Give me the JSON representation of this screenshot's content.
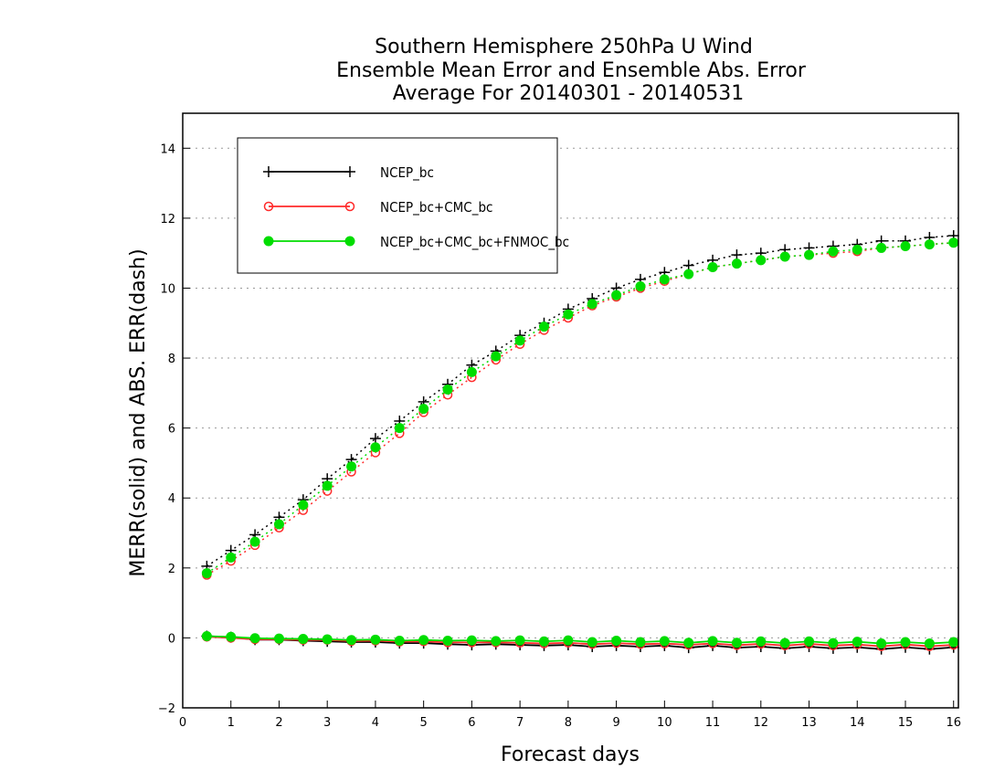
{
  "chart_data": {
    "type": "line",
    "title": [
      "Southern Hemisphere 250hPa U Wind",
      "Ensemble Mean Error and Ensemble Abs. Error",
      "Average For 20140301 - 20140531"
    ],
    "xlabel": "Forecast days",
    "ylabel": "MERR(solid) and ABS. ERR(dash)",
    "xlim": [
      0,
      16.1
    ],
    "ylim": [
      -2,
      15
    ],
    "xticks": [
      0,
      1,
      2,
      3,
      4,
      5,
      6,
      7,
      8,
      9,
      10,
      11,
      12,
      13,
      14,
      15,
      16
    ],
    "yticks": [
      -2,
      0,
      2,
      4,
      6,
      8,
      10,
      12,
      14
    ],
    "grid": "dotted horizontal at y ticks",
    "legend_position": "top-left",
    "x": [
      0.5,
      1,
      1.5,
      2,
      2.5,
      3,
      3.5,
      4,
      4.5,
      5,
      5.5,
      6,
      6.5,
      7,
      7.5,
      8,
      8.5,
      9,
      9.5,
      10,
      10.5,
      11,
      11.5,
      12,
      12.5,
      13,
      13.5,
      14,
      14.5,
      15,
      15.5,
      16
    ],
    "series": [
      {
        "name": "NCEP_bc",
        "color": "#000000",
        "marker": "plus",
        "abs_err_dash": [
          2.05,
          2.5,
          2.95,
          3.45,
          3.95,
          4.55,
          5.1,
          5.7,
          6.2,
          6.75,
          7.25,
          7.8,
          8.2,
          8.65,
          9.0,
          9.4,
          9.7,
          10.0,
          10.25,
          10.45,
          10.65,
          10.8,
          10.95,
          11.0,
          11.1,
          11.15,
          11.2,
          11.25,
          11.35,
          11.35,
          11.45,
          11.5
        ],
        "mean_err_solid": [
          0.05,
          0.02,
          -0.05,
          -0.05,
          -0.08,
          -0.1,
          -0.12,
          -0.12,
          -0.15,
          -0.15,
          -0.18,
          -0.2,
          -0.18,
          -0.2,
          -0.22,
          -0.2,
          -0.25,
          -0.22,
          -0.25,
          -0.22,
          -0.28,
          -0.22,
          -0.28,
          -0.25,
          -0.3,
          -0.25,
          -0.3,
          -0.27,
          -0.32,
          -0.27,
          -0.32,
          -0.27
        ]
      },
      {
        "name": "NCEP_bc+CMC_bc",
        "color": "#ff2a2a",
        "marker": "open-circle",
        "abs_err_dash": [
          1.8,
          2.2,
          2.65,
          3.15,
          3.65,
          4.2,
          4.75,
          5.3,
          5.85,
          6.45,
          6.95,
          7.45,
          7.95,
          8.4,
          8.8,
          9.15,
          9.5,
          9.75,
          10.0,
          10.2,
          10.4,
          10.6,
          10.7,
          10.8,
          10.9,
          10.95,
          11.0,
          11.05,
          11.15,
          11.2,
          11.25,
          11.3
        ],
        "mean_err_solid": [
          0.03,
          0.0,
          -0.04,
          -0.04,
          -0.06,
          -0.06,
          -0.09,
          -0.08,
          -0.11,
          -0.1,
          -0.13,
          -0.13,
          -0.13,
          -0.14,
          -0.16,
          -0.14,
          -0.18,
          -0.15,
          -0.18,
          -0.16,
          -0.2,
          -0.16,
          -0.21,
          -0.17,
          -0.22,
          -0.17,
          -0.22,
          -0.19,
          -0.24,
          -0.19,
          -0.24,
          -0.2
        ]
      },
      {
        "name": "NCEP_bc+CMC_bc+FNMOC_bc",
        "color": "#00dd00",
        "marker": "filled-circle",
        "abs_err_dash": [
          1.85,
          2.3,
          2.75,
          3.25,
          3.8,
          4.35,
          4.9,
          5.45,
          6.0,
          6.55,
          7.1,
          7.6,
          8.05,
          8.5,
          8.9,
          9.25,
          9.55,
          9.8,
          10.05,
          10.25,
          10.4,
          10.6,
          10.7,
          10.8,
          10.9,
          10.95,
          11.05,
          11.1,
          11.15,
          11.2,
          11.25,
          11.3
        ],
        "mean_err_solid": [
          0.05,
          0.03,
          -0.01,
          -0.02,
          -0.03,
          -0.04,
          -0.06,
          -0.05,
          -0.08,
          -0.06,
          -0.08,
          -0.07,
          -0.09,
          -0.07,
          -0.1,
          -0.07,
          -0.12,
          -0.08,
          -0.12,
          -0.09,
          -0.14,
          -0.09,
          -0.14,
          -0.1,
          -0.15,
          -0.1,
          -0.15,
          -0.11,
          -0.16,
          -0.12,
          -0.16,
          -0.12
        ]
      }
    ]
  }
}
